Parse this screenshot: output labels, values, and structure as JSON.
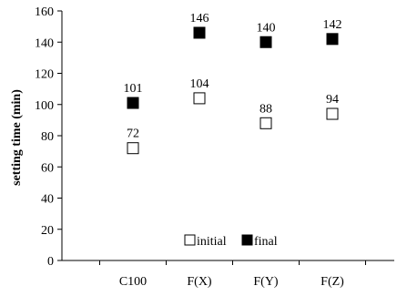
{
  "chart_data": {
    "type": "scatter",
    "categories": [
      "C100",
      "F(X)",
      "F(Y)",
      "F(Z)"
    ],
    "series": [
      {
        "name": "initial",
        "values": [
          72,
          104,
          88,
          94
        ],
        "marker": "open-square",
        "color": "#000000"
      },
      {
        "name": "final",
        "values": [
          101,
          146,
          140,
          142
        ],
        "marker": "filled-square",
        "color": "#000000"
      }
    ],
    "title": "",
    "xlabel": "",
    "ylabel": "setting time (min)",
    "ylim": [
      0,
      160
    ],
    "yticks": [
      0,
      20,
      40,
      60,
      80,
      100,
      120,
      140,
      160
    ],
    "grid": false,
    "legend_position": "bottom-center",
    "data_labels": true
  }
}
